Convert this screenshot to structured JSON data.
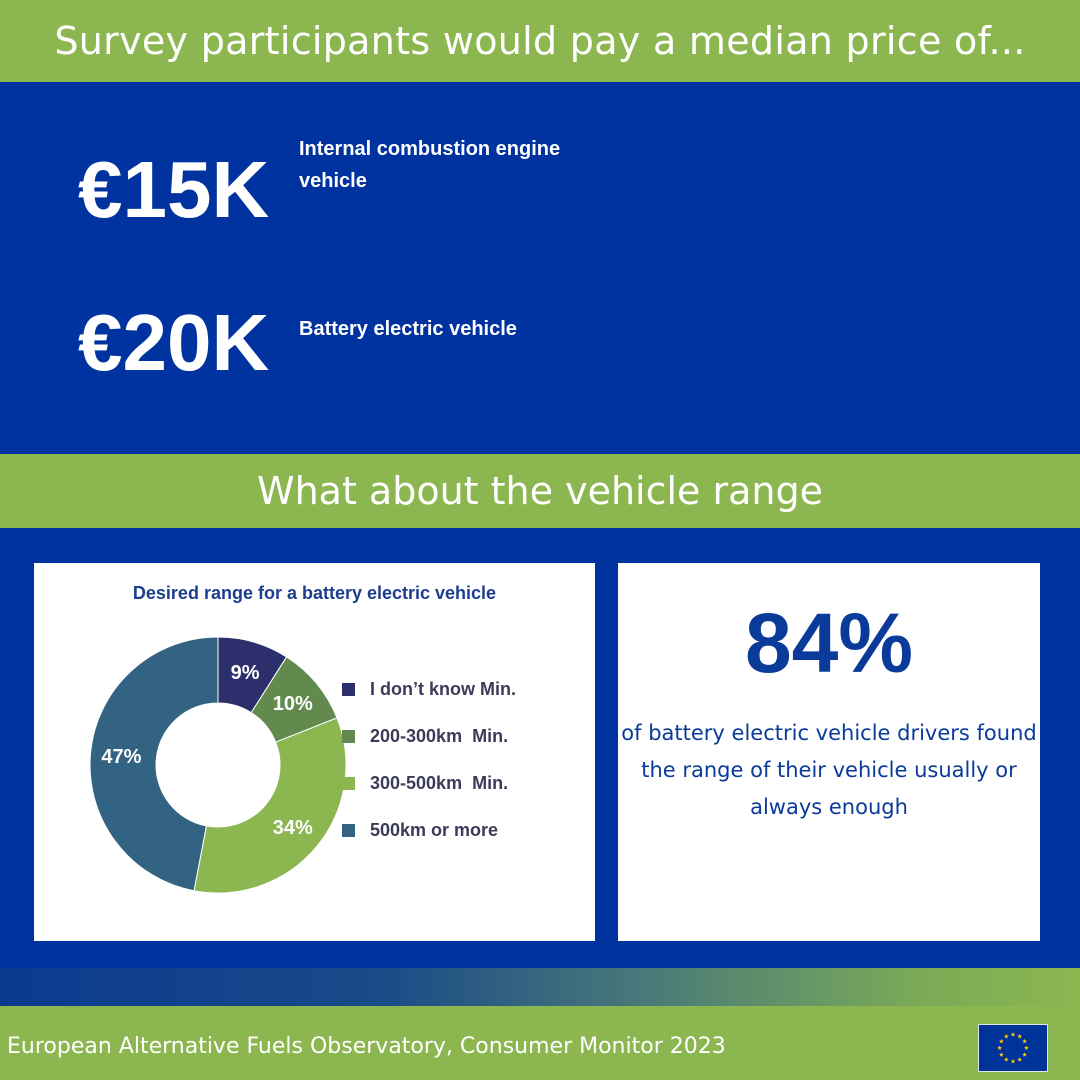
{
  "header": {
    "title": "Survey participants would pay a median price of..."
  },
  "prices": [
    {
      "value": "€15K",
      "label": "Internal combustion engine vehicle"
    },
    {
      "value": "€20K",
      "label": "Battery electric vehicle"
    }
  ],
  "section": {
    "title": "What about the vehicle range"
  },
  "chart_data": {
    "type": "pie",
    "title": "Desired range for a battery electric vehicle",
    "categories": [
      "I don’t know Min.",
      "200-300km  Min.",
      "300-500km  Min.",
      "500km or more"
    ],
    "values": [
      9,
      10,
      34,
      47
    ],
    "data_labels": [
      "9%",
      "10%",
      "34%",
      "47%"
    ],
    "colors": [
      "#2c2f6b",
      "#628a4f",
      "#8cb650",
      "#336382"
    ],
    "donut": true,
    "legend_position": "right"
  },
  "stat": {
    "value": "84%",
    "text": "of battery electric vehicle drivers found the range of their vehicle usually or always enough"
  },
  "footer": {
    "source": "European Alternative Fuels Observatory, Consumer Monitor 2023"
  },
  "colors": {
    "green": "#8cb650",
    "blue": "#0033a0"
  }
}
